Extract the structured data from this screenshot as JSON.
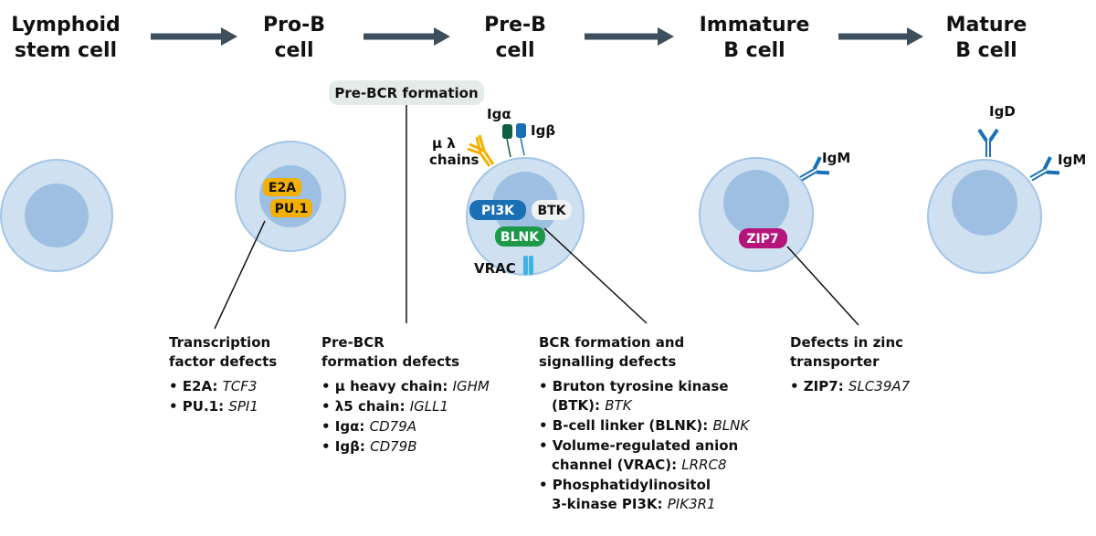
{
  "stages": [
    {
      "line1": "Lymphoid",
      "line2": "stem cell"
    },
    {
      "line1": "Pro-B",
      "line2": "cell"
    },
    {
      "line1": "Pre-B",
      "line2": "cell"
    },
    {
      "line1": "Immature",
      "line2": "B cell"
    },
    {
      "line1": "Mature",
      "line2": "B cell"
    }
  ],
  "labels": {
    "pre_bcr_formation": "Pre-BCR formation",
    "mu_lambda": "μ λ",
    "chains": "chains",
    "iga": "Igα",
    "igb": "Igβ",
    "vrac": "VRAC",
    "igm": "IgM",
    "igd": "IgD"
  },
  "proteins": {
    "e2a": "E2A",
    "pu1": "PU.1",
    "pi3k": "PI3K",
    "btk": "BTK",
    "blnk": "BLNK",
    "zip7": "ZIP7"
  },
  "colors": {
    "arrow": "#3d4f5c",
    "transcription": "#f2b100",
    "pi3k": "#1a6fb5",
    "blnk": "#1c9a4a",
    "zip7": "#b5157a",
    "vrac": "#3ab4e8",
    "antibody": "#1a6fb5"
  },
  "defects": [
    {
      "heading": [
        "Transcription",
        "factor defects"
      ],
      "items": [
        {
          "b": "• E2A: ",
          "i": "TCF3"
        },
        {
          "b": "• PU.1: ",
          "i": "SPI1"
        }
      ]
    },
    {
      "heading": [
        "Pre-BCR",
        "formation defects"
      ],
      "items": [
        {
          "b": "• μ heavy chain: ",
          "i": "IGHM"
        },
        {
          "b": "• λ5 chain: ",
          "i": "IGLL1"
        },
        {
          "b": "• Igα: ",
          "i": "CD79A"
        },
        {
          "b": "• Igβ: ",
          "i": "CD79B"
        }
      ]
    },
    {
      "heading": [
        "BCR formation and",
        "signalling defects"
      ],
      "items": [
        {
          "b": "• Bruton tyrosine kinase",
          "b2": "(BTK): ",
          "i": "BTK"
        },
        {
          "b": "• B-cell linker (BLNK): ",
          "i": "BLNK"
        },
        {
          "b": "• Volume-regulated anion",
          "b2": "channel (VRAC): ",
          "i": "LRRC8"
        },
        {
          "b": "• Phosphatidylinositol",
          "b2": "3-kinase PI3K: ",
          "i": "PIK3R1"
        }
      ]
    },
    {
      "heading": [
        "Defects in zinc",
        "transporter"
      ],
      "items": [
        {
          "b": "• ZIP7: ",
          "i": "SLC39A7"
        }
      ]
    }
  ]
}
